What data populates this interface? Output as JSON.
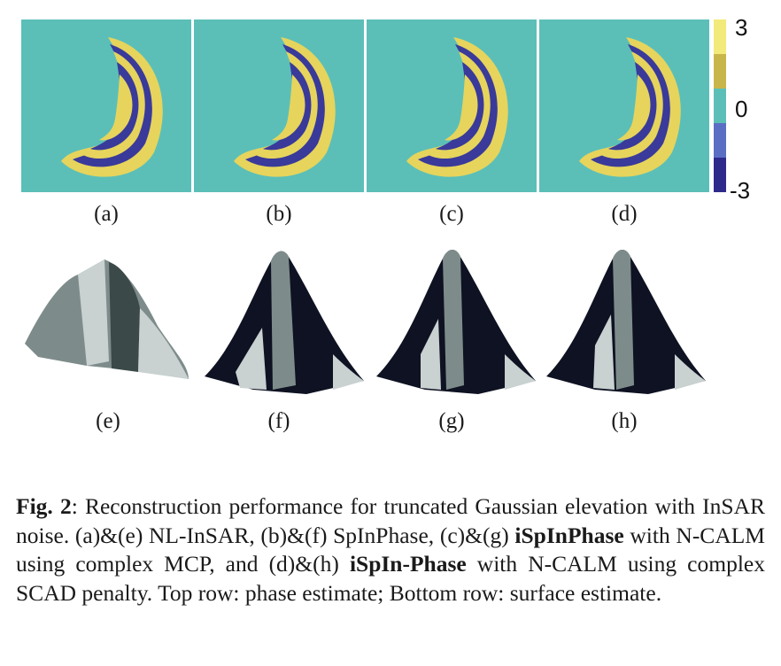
{
  "figure": {
    "panels_top": [
      {
        "label": "(a)",
        "method": "NL-InSAR"
      },
      {
        "label": "(b)",
        "method": "SpInPhase"
      },
      {
        "label": "(c)",
        "method": "iSpInPhase MCP"
      },
      {
        "label": "(d)",
        "method": "iSpInPhase SCAD"
      }
    ],
    "panels_bottom": [
      {
        "label": "(e)"
      },
      {
        "label": "(f)"
      },
      {
        "label": "(g)"
      },
      {
        "label": "(h)"
      }
    ],
    "colorbar": {
      "ticks": [
        "3",
        "0",
        "-3"
      ],
      "colors": [
        "#f2ea7a",
        "#c9b64a",
        "#5bbfb8",
        "#5a6fc4",
        "#2e2a8c"
      ]
    },
    "colors": {
      "phase_background": "#5bbfb8",
      "phase_yellow": "#e6d45c",
      "phase_blue": "#3a3a9a",
      "surface_light": "#c9d1d1",
      "surface_mid": "#7d8c8a",
      "surface_dark": "#0e1222"
    }
  },
  "caption": {
    "fig_label": "Fig. 2",
    "part1": ": Reconstruction performance for truncated Gaussian elevation with InSAR noise. (a)&(e) NL-InSAR, (b)&(f) SpInPhase, (c)&(g) ",
    "bold1": "iSpInPhase",
    "part2": " with N-CALM using complex MCP, and (d)&(h) ",
    "bold2": "iSpIn-Phase",
    "part3": " with N-CALM using complex SCAD penalty. Top row: phase estimate; Bottom row: surface estimate."
  }
}
